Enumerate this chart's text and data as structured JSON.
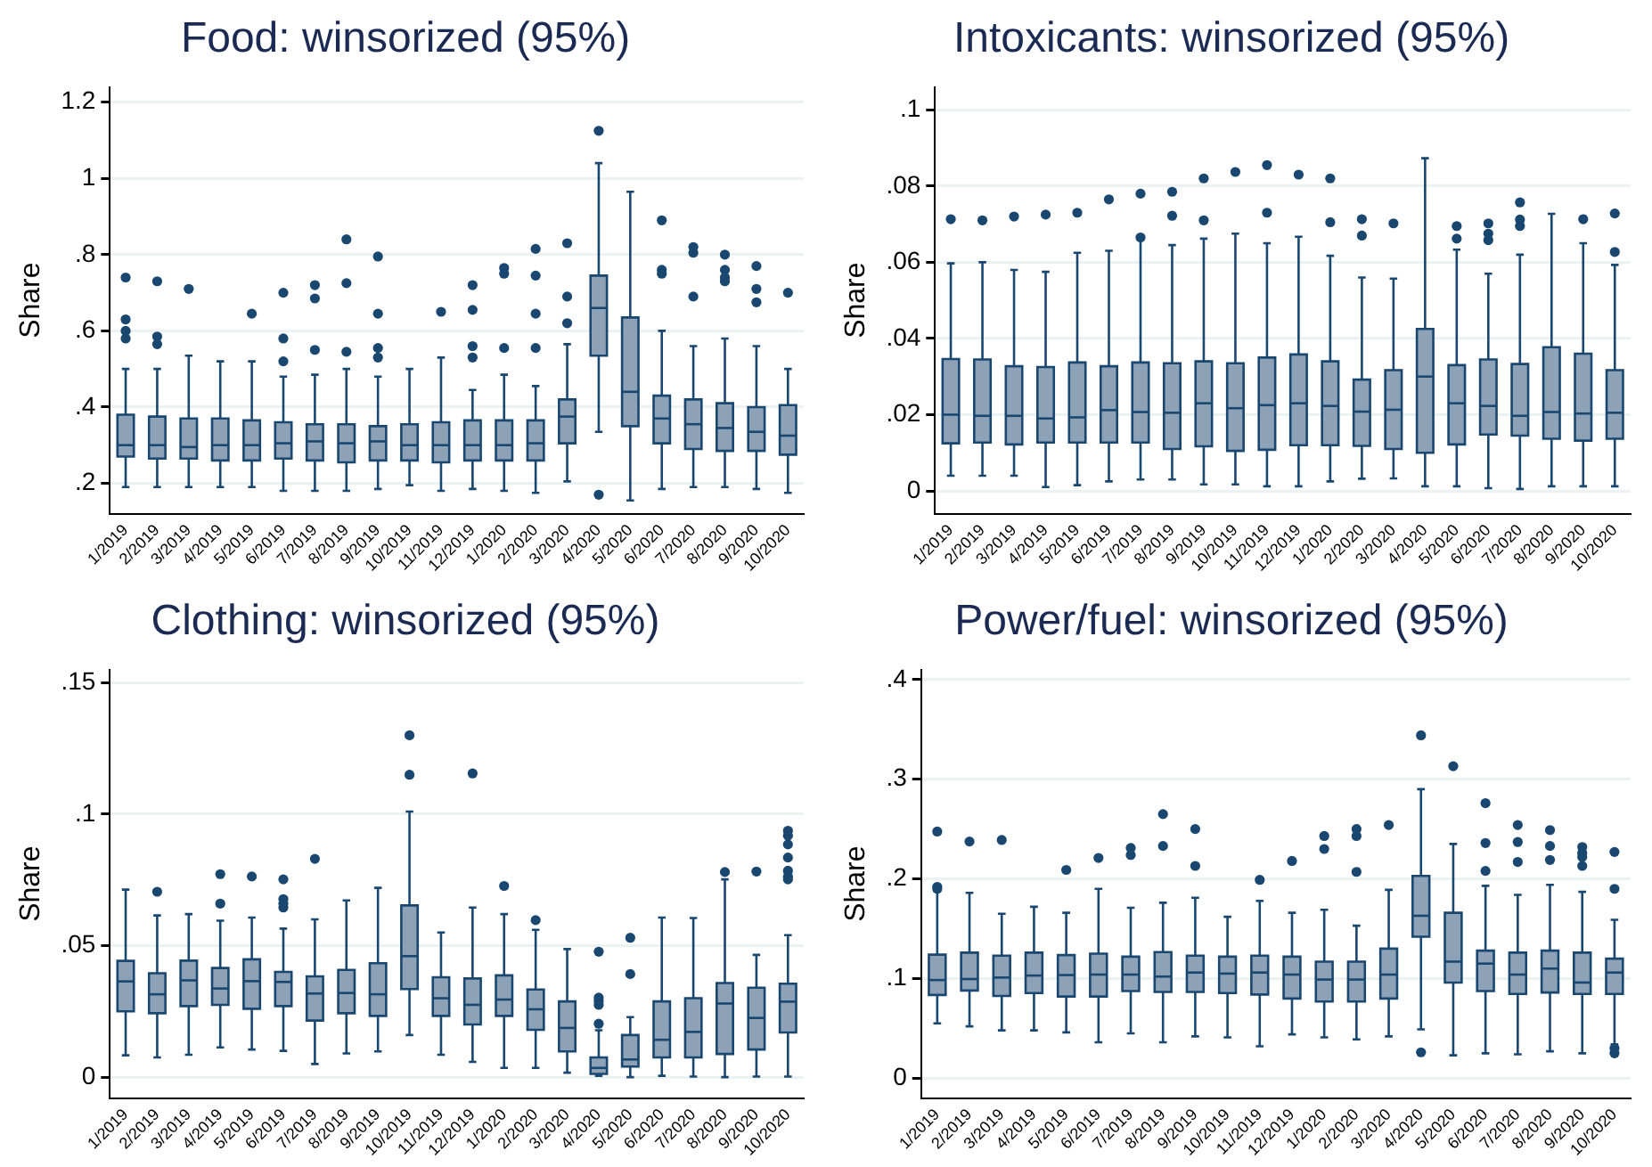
{
  "chart_data": [
    {
      "type": "box",
      "title": "Food: winsorized (95%)",
      "ylabel": "Share",
      "color": "#8da2b6",
      "grid": "y",
      "categories": [
        "1/2019",
        "2/2019",
        "3/2019",
        "4/2019",
        "5/2019",
        "6/2019",
        "7/2019",
        "8/2019",
        "9/2019",
        "10/2019",
        "11/2019",
        "12/2019",
        "1/2020",
        "2/2020",
        "3/2020",
        "4/2020",
        "5/2020",
        "6/2020",
        "7/2020",
        "8/2020",
        "9/2020",
        "10/2020"
      ],
      "ylim": [
        0.12,
        1.24
      ],
      "yticks": [
        {
          "value": 0.2,
          "label": ".2"
        },
        {
          "value": 0.4,
          "label": ".4"
        },
        {
          "value": 0.6,
          "label": ".6"
        },
        {
          "value": 0.8,
          "label": ".8"
        },
        {
          "value": 1,
          "label": "1"
        },
        {
          "value": 1.2,
          "label": "1.2"
        }
      ],
      "boxes": [
        {
          "low": 0.19,
          "q1": 0.27,
          "median": 0.3,
          "q3": 0.38,
          "high": 0.5,
          "outliers": [
            0.74,
            0.63,
            0.6,
            0.58
          ]
        },
        {
          "low": 0.19,
          "q1": 0.265,
          "median": 0.3,
          "q3": 0.375,
          "high": 0.5,
          "outliers": [
            0.73,
            0.585,
            0.565
          ]
        },
        {
          "low": 0.19,
          "q1": 0.265,
          "median": 0.295,
          "q3": 0.37,
          "high": 0.535,
          "outliers": [
            0.71
          ]
        },
        {
          "low": 0.19,
          "q1": 0.26,
          "median": 0.3,
          "q3": 0.37,
          "high": 0.52
        },
        {
          "low": 0.19,
          "q1": 0.26,
          "median": 0.3,
          "q3": 0.365,
          "high": 0.52,
          "outliers": [
            0.645
          ]
        },
        {
          "low": 0.18,
          "q1": 0.265,
          "median": 0.305,
          "q3": 0.36,
          "high": 0.48,
          "outliers": [
            0.7,
            0.58,
            0.52
          ]
        },
        {
          "low": 0.18,
          "q1": 0.26,
          "median": 0.31,
          "q3": 0.355,
          "high": 0.485,
          "outliers": [
            0.72,
            0.685,
            0.55
          ]
        },
        {
          "low": 0.18,
          "q1": 0.255,
          "median": 0.305,
          "q3": 0.355,
          "high": 0.5,
          "outliers": [
            0.84,
            0.725,
            0.545
          ]
        },
        {
          "low": 0.185,
          "q1": 0.26,
          "median": 0.31,
          "q3": 0.35,
          "high": 0.48,
          "outliers": [
            0.795,
            0.645,
            0.555,
            0.53
          ]
        },
        {
          "low": 0.195,
          "q1": 0.26,
          "median": 0.3,
          "q3": 0.355,
          "high": 0.5
        },
        {
          "low": 0.18,
          "q1": 0.255,
          "median": 0.3,
          "q3": 0.36,
          "high": 0.53,
          "outliers": [
            0.65
          ]
        },
        {
          "low": 0.185,
          "q1": 0.26,
          "median": 0.3,
          "q3": 0.365,
          "high": 0.445,
          "outliers": [
            0.72,
            0.655,
            0.56,
            0.53
          ]
        },
        {
          "low": 0.18,
          "q1": 0.26,
          "median": 0.3,
          "q3": 0.365,
          "high": 0.485,
          "outliers": [
            0.765,
            0.75,
            0.555
          ]
        },
        {
          "low": 0.175,
          "q1": 0.26,
          "median": 0.305,
          "q3": 0.365,
          "high": 0.455,
          "outliers": [
            0.815,
            0.745,
            0.645,
            0.555
          ]
        },
        {
          "low": 0.205,
          "q1": 0.305,
          "median": 0.375,
          "q3": 0.42,
          "high": 0.565,
          "outliers": [
            0.83,
            0.69,
            0.62
          ]
        },
        {
          "low": 0.335,
          "q1": 0.535,
          "median": 0.66,
          "q3": 0.745,
          "high": 1.04,
          "outliers": [
            1.125,
            0.17
          ]
        },
        {
          "low": 0.155,
          "q1": 0.35,
          "median": 0.44,
          "q3": 0.635,
          "high": 0.965
        },
        {
          "low": 0.185,
          "q1": 0.305,
          "median": 0.37,
          "q3": 0.43,
          "high": 0.6,
          "outliers": [
            0.89,
            0.76,
            0.75
          ]
        },
        {
          "low": 0.19,
          "q1": 0.29,
          "median": 0.355,
          "q3": 0.42,
          "high": 0.56,
          "outliers": [
            0.82,
            0.805,
            0.69
          ]
        },
        {
          "low": 0.19,
          "q1": 0.285,
          "median": 0.345,
          "q3": 0.41,
          "high": 0.58,
          "outliers": [
            0.8,
            0.76,
            0.74,
            0.73
          ]
        },
        {
          "low": 0.185,
          "q1": 0.285,
          "median": 0.335,
          "q3": 0.4,
          "high": 0.56,
          "outliers": [
            0.77,
            0.71,
            0.675
          ]
        },
        {
          "low": 0.175,
          "q1": 0.275,
          "median": 0.325,
          "q3": 0.405,
          "high": 0.5,
          "outliers": [
            0.7
          ]
        }
      ]
    },
    {
      "type": "box",
      "title": "Intoxicants: winsorized (95%)",
      "ylabel": "Share",
      "color": "#8da2b6",
      "grid": "y",
      "categories": [
        "1/2019",
        "2/2019",
        "3/2019",
        "4/2019",
        "5/2019",
        "6/2019",
        "7/2019",
        "8/2019",
        "9/2019",
        "10/2019",
        "11/2019",
        "12/2019",
        "1/2020",
        "2/2020",
        "3/2020",
        "4/2020",
        "5/2020",
        "6/2020",
        "7/2020",
        "8/2020",
        "9/2020",
        "10/2020"
      ],
      "ylim": [
        -0.006,
        0.106
      ],
      "yticks": [
        {
          "value": 0,
          "label": "0"
        },
        {
          "value": 0.02,
          "label": ".02"
        },
        {
          "value": 0.04,
          "label": ".04"
        },
        {
          "value": 0.06,
          "label": ".06"
        },
        {
          "value": 0.08,
          "label": ".08"
        },
        {
          "value": 0.1,
          "label": ".1"
        }
      ],
      "boxes": [
        {
          "low": 0.004,
          "q1": 0.0125,
          "median": 0.02,
          "q3": 0.0346,
          "high": 0.0597,
          "outliers": [
            0.0713
          ]
        },
        {
          "low": 0.004,
          "q1": 0.0127,
          "median": 0.0197,
          "q3": 0.0345,
          "high": 0.06,
          "outliers": [
            0.071
          ]
        },
        {
          "low": 0.004,
          "q1": 0.0122,
          "median": 0.0197,
          "q3": 0.0327,
          "high": 0.058,
          "outliers": [
            0.072
          ]
        },
        {
          "low": 0.001,
          "q1": 0.0127,
          "median": 0.019,
          "q3": 0.0325,
          "high": 0.0575,
          "outliers": [
            0.0725
          ]
        },
        {
          "low": 0.0015,
          "q1": 0.0127,
          "median": 0.0193,
          "q3": 0.0337,
          "high": 0.0625,
          "outliers": [
            0.073
          ]
        },
        {
          "low": 0.0025,
          "q1": 0.0127,
          "median": 0.0212,
          "q3": 0.0327,
          "high": 0.063,
          "outliers": [
            0.0765
          ]
        },
        {
          "low": 0.003,
          "q1": 0.0127,
          "median": 0.0207,
          "q3": 0.0337,
          "high": 0.066,
          "outliers": [
            0.078,
            0.0665
          ]
        },
        {
          "low": 0.003,
          "q1": 0.011,
          "median": 0.0205,
          "q3": 0.0335,
          "high": 0.0645,
          "outliers": [
            0.0785,
            0.0722
          ]
        },
        {
          "low": 0.0017,
          "q1": 0.0117,
          "median": 0.023,
          "q3": 0.034,
          "high": 0.0662,
          "outliers": [
            0.082,
            0.071
          ]
        },
        {
          "low": 0.0017,
          "q1": 0.0105,
          "median": 0.0217,
          "q3": 0.0335,
          "high": 0.0675,
          "outliers": [
            0.0837
          ]
        },
        {
          "low": 0.0012,
          "q1": 0.0108,
          "median": 0.0225,
          "q3": 0.035,
          "high": 0.065,
          "outliers": [
            0.0855,
            0.073
          ]
        },
        {
          "low": 0.0012,
          "q1": 0.012,
          "median": 0.023,
          "q3": 0.0358,
          "high": 0.0667,
          "outliers": [
            0.083
          ]
        },
        {
          "low": 0.0025,
          "q1": 0.012,
          "median": 0.0223,
          "q3": 0.034,
          "high": 0.0617,
          "outliers": [
            0.082,
            0.0705
          ]
        },
        {
          "low": 0.0032,
          "q1": 0.0118,
          "median": 0.0208,
          "q3": 0.0292,
          "high": 0.056,
          "outliers": [
            0.0713,
            0.067
          ]
        },
        {
          "low": 0.0033,
          "q1": 0.011,
          "median": 0.0213,
          "q3": 0.0317,
          "high": 0.0557,
          "outliers": [
            0.0702
          ]
        },
        {
          "low": 0.0012,
          "q1": 0.01,
          "median": 0.03,
          "q3": 0.0425,
          "high": 0.0873
        },
        {
          "low": 0.0012,
          "q1": 0.0122,
          "median": 0.023,
          "q3": 0.033,
          "high": 0.0633,
          "outliers": [
            0.0695,
            0.0662
          ]
        },
        {
          "low": 0.0007,
          "q1": 0.0148,
          "median": 0.0223,
          "q3": 0.0345,
          "high": 0.057,
          "outliers": [
            0.0702,
            0.0675,
            0.0658
          ]
        },
        {
          "low": 0.0005,
          "q1": 0.0145,
          "median": 0.0197,
          "q3": 0.0333,
          "high": 0.062,
          "outliers": [
            0.0757,
            0.0712,
            0.0695
          ]
        },
        {
          "low": 0.0012,
          "q1": 0.0137,
          "median": 0.0207,
          "q3": 0.0377,
          "high": 0.0727
        },
        {
          "low": 0.0012,
          "q1": 0.0132,
          "median": 0.0203,
          "q3": 0.036,
          "high": 0.065,
          "outliers": [
            0.0713
          ]
        },
        {
          "low": 0.0012,
          "q1": 0.0137,
          "median": 0.0205,
          "q3": 0.0317,
          "high": 0.0593,
          "outliers": [
            0.0728,
            0.0627
          ]
        }
      ]
    },
    {
      "type": "box",
      "title": "Clothing: winsorized (95%)",
      "ylabel": "Share",
      "color": "#8da2b6",
      "grid": "y",
      "categories": [
        "1/2019",
        "2/2019",
        "3/2019",
        "4/2019",
        "5/2019",
        "6/2019",
        "7/2019",
        "8/2019",
        "9/2019",
        "10/2019",
        "11/2019",
        "12/2019",
        "1/2020",
        "2/2020",
        "3/2020",
        "4/2020",
        "5/2020",
        "6/2020",
        "7/2020",
        "8/2020",
        "9/2020",
        "10/2020"
      ],
      "ylim": [
        -0.008,
        0.155
      ],
      "yticks": [
        {
          "value": 0,
          "label": "0"
        },
        {
          "value": 0.05,
          "label": ".05"
        },
        {
          "value": 0.1,
          "label": ".1"
        },
        {
          "value": 0.15,
          "label": ".15"
        }
      ],
      "boxes": [
        {
          "low": 0.0083,
          "q1": 0.025,
          "median": 0.0364,
          "q3": 0.0442,
          "high": 0.0713
        },
        {
          "low": 0.0075,
          "q1": 0.0243,
          "median": 0.0315,
          "q3": 0.0395,
          "high": 0.0615,
          "outliers": [
            0.0705
          ]
        },
        {
          "low": 0.0085,
          "q1": 0.027,
          "median": 0.0368,
          "q3": 0.0443,
          "high": 0.062
        },
        {
          "low": 0.0113,
          "q1": 0.0275,
          "median": 0.0337,
          "q3": 0.0415,
          "high": 0.0595,
          "outliers": [
            0.0772,
            0.066
          ]
        },
        {
          "low": 0.0105,
          "q1": 0.026,
          "median": 0.0365,
          "q3": 0.0448,
          "high": 0.0607,
          "outliers": [
            0.0763
          ]
        },
        {
          "low": 0.01,
          "q1": 0.027,
          "median": 0.0362,
          "q3": 0.04,
          "high": 0.0565,
          "outliers": [
            0.0752,
            0.0677,
            0.066,
            0.0645
          ]
        },
        {
          "low": 0.005,
          "q1": 0.0215,
          "median": 0.0318,
          "q3": 0.0383,
          "high": 0.06,
          "outliers": [
            0.083
          ]
        },
        {
          "low": 0.009,
          "q1": 0.0243,
          "median": 0.032,
          "q3": 0.0408,
          "high": 0.0672
        },
        {
          "low": 0.0098,
          "q1": 0.0233,
          "median": 0.0315,
          "q3": 0.0433,
          "high": 0.072
        },
        {
          "low": 0.016,
          "q1": 0.0335,
          "median": 0.046,
          "q3": 0.0653,
          "high": 0.101,
          "outliers": [
            0.13,
            0.115
          ]
        },
        {
          "low": 0.0085,
          "q1": 0.0233,
          "median": 0.03,
          "q3": 0.038,
          "high": 0.055
        },
        {
          "low": 0.0058,
          "q1": 0.02,
          "median": 0.0275,
          "q3": 0.0375,
          "high": 0.0645,
          "outliers": [
            0.1155
          ]
        },
        {
          "low": 0.0035,
          "q1": 0.0233,
          "median": 0.0295,
          "q3": 0.0387,
          "high": 0.062,
          "outliers": [
            0.0727
          ]
        },
        {
          "low": 0.0035,
          "q1": 0.018,
          "median": 0.0258,
          "q3": 0.0333,
          "high": 0.056,
          "outliers": [
            0.0597
          ]
        },
        {
          "low": 0.0017,
          "q1": 0.0098,
          "median": 0.0187,
          "q3": 0.0288,
          "high": 0.0487
        },
        {
          "low": 0.0005,
          "q1": 0.0012,
          "median": 0.0035,
          "q3": 0.0075,
          "high": 0.0178,
          "outliers": [
            0.0477,
            0.0302,
            0.029,
            0.0275,
            0.0203
          ]
        },
        {
          "low": 0,
          "q1": 0.004,
          "median": 0.0067,
          "q3": 0.016,
          "high": 0.0228,
          "outliers": [
            0.053,
            0.0392
          ]
        },
        {
          "low": 0.0005,
          "q1": 0.0075,
          "median": 0.0142,
          "q3": 0.0288,
          "high": 0.0607
        },
        {
          "low": 0.0002,
          "q1": 0.0075,
          "median": 0.0172,
          "q3": 0.03,
          "high": 0.0605
        },
        {
          "low": 0,
          "q1": 0.0088,
          "median": 0.028,
          "q3": 0.0358,
          "high": 0.0752,
          "outliers": [
            0.078
          ]
        },
        {
          "low": 0.0002,
          "q1": 0.0105,
          "median": 0.0225,
          "q3": 0.034,
          "high": 0.0465,
          "outliers": [
            0.0782
          ]
        },
        {
          "low": 0.0002,
          "q1": 0.017,
          "median": 0.0287,
          "q3": 0.0355,
          "high": 0.054,
          "outliers": [
            0.0937,
            0.0918,
            0.0885,
            0.0835,
            0.0785,
            0.0762,
            0.0752
          ]
        }
      ]
    },
    {
      "type": "box",
      "title": "Power/fuel: winsorized (95%)",
      "ylabel": "Share",
      "color": "#8da2b6",
      "grid": "y",
      "categories": [
        "1/2019",
        "2/2019",
        "3/2019",
        "4/2019",
        "5/2019",
        "6/2019",
        "7/2019",
        "8/2019",
        "9/2019",
        "10/2019",
        "11/2019",
        "12/2019",
        "1/2020",
        "2/2020",
        "3/2020",
        "4/2020",
        "5/2020",
        "6/2020",
        "7/2020",
        "8/2020",
        "9/2020",
        "10/2020"
      ],
      "ylim": [
        -0.02,
        0.41
      ],
      "yticks": [
        {
          "value": 0,
          "label": "0"
        },
        {
          "value": 0.1,
          "label": ".1"
        },
        {
          "value": 0.2,
          "label": ".2"
        },
        {
          "value": 0.3,
          "label": ".3"
        },
        {
          "value": 0.4,
          "label": ".4"
        }
      ],
      "boxes": [
        {
          "low": 0.055,
          "q1": 0.0835,
          "median": 0.0985,
          "q3": 0.124,
          "high": 0.1875,
          "outliers": [
            0.2475,
            0.192,
            0.19
          ]
        },
        {
          "low": 0.052,
          "q1": 0.088,
          "median": 0.0995,
          "q3": 0.126,
          "high": 0.186,
          "outliers": [
            0.2375
          ]
        },
        {
          "low": 0.048,
          "q1": 0.0825,
          "median": 0.101,
          "q3": 0.123,
          "high": 0.165,
          "outliers": [
            0.239
          ]
        },
        {
          "low": 0.048,
          "q1": 0.0855,
          "median": 0.103,
          "q3": 0.126,
          "high": 0.172
        },
        {
          "low": 0.046,
          "q1": 0.082,
          "median": 0.1035,
          "q3": 0.1235,
          "high": 0.166,
          "outliers": [
            0.209
          ]
        },
        {
          "low": 0.036,
          "q1": 0.082,
          "median": 0.104,
          "q3": 0.125,
          "high": 0.19,
          "outliers": [
            0.221
          ]
        },
        {
          "low": 0.045,
          "q1": 0.0875,
          "median": 0.104,
          "q3": 0.122,
          "high": 0.171,
          "outliers": [
            0.231,
            0.224
          ]
        },
        {
          "low": 0.036,
          "q1": 0.0865,
          "median": 0.102,
          "q3": 0.1265,
          "high": 0.176,
          "outliers": [
            0.265,
            0.233
          ]
        },
        {
          "low": 0.042,
          "q1": 0.0865,
          "median": 0.106,
          "q3": 0.123,
          "high": 0.181,
          "outliers": [
            0.25,
            0.213
          ]
        },
        {
          "low": 0.041,
          "q1": 0.0855,
          "median": 0.105,
          "q3": 0.122,
          "high": 0.162
        },
        {
          "low": 0.032,
          "q1": 0.084,
          "median": 0.106,
          "q3": 0.123,
          "high": 0.178,
          "outliers": [
            0.199
          ]
        },
        {
          "low": 0.044,
          "q1": 0.08,
          "median": 0.104,
          "q3": 0.122,
          "high": 0.166,
          "outliers": [
            0.218
          ]
        },
        {
          "low": 0.041,
          "q1": 0.077,
          "median": 0.099,
          "q3": 0.117,
          "high": 0.169,
          "outliers": [
            0.243,
            0.23
          ]
        },
        {
          "low": 0.039,
          "q1": 0.077,
          "median": 0.099,
          "q3": 0.117,
          "high": 0.153,
          "outliers": [
            0.25,
            0.243,
            0.207
          ]
        },
        {
          "low": 0.042,
          "q1": 0.08,
          "median": 0.104,
          "q3": 0.13,
          "high": 0.189,
          "outliers": [
            0.254
          ]
        },
        {
          "low": 0.049,
          "q1": 0.142,
          "median": 0.163,
          "q3": 0.203,
          "high": 0.29,
          "outliers": [
            0.344,
            0.026
          ]
        },
        {
          "low": 0.023,
          "q1": 0.096,
          "median": 0.117,
          "q3": 0.166,
          "high": 0.235,
          "outliers": [
            0.313
          ]
        },
        {
          "low": 0.025,
          "q1": 0.0875,
          "median": 0.115,
          "q3": 0.128,
          "high": 0.193,
          "outliers": [
            0.276,
            0.236,
            0.208
          ]
        },
        {
          "low": 0.024,
          "q1": 0.0845,
          "median": 0.104,
          "q3": 0.126,
          "high": 0.184,
          "outliers": [
            0.254,
            0.237,
            0.217
          ]
        },
        {
          "low": 0.027,
          "q1": 0.086,
          "median": 0.11,
          "q3": 0.128,
          "high": 0.194,
          "outliers": [
            0.249,
            0.233,
            0.219
          ]
        },
        {
          "low": 0.025,
          "q1": 0.0845,
          "median": 0.096,
          "q3": 0.126,
          "high": 0.187,
          "outliers": [
            0.232,
            0.226,
            0.222,
            0.213
          ]
        },
        {
          "low": 0.034,
          "q1": 0.0845,
          "median": 0.106,
          "q3": 0.12,
          "high": 0.159,
          "outliers": [
            0.227,
            0.19,
            0.03,
            0.025
          ]
        }
      ]
    }
  ]
}
